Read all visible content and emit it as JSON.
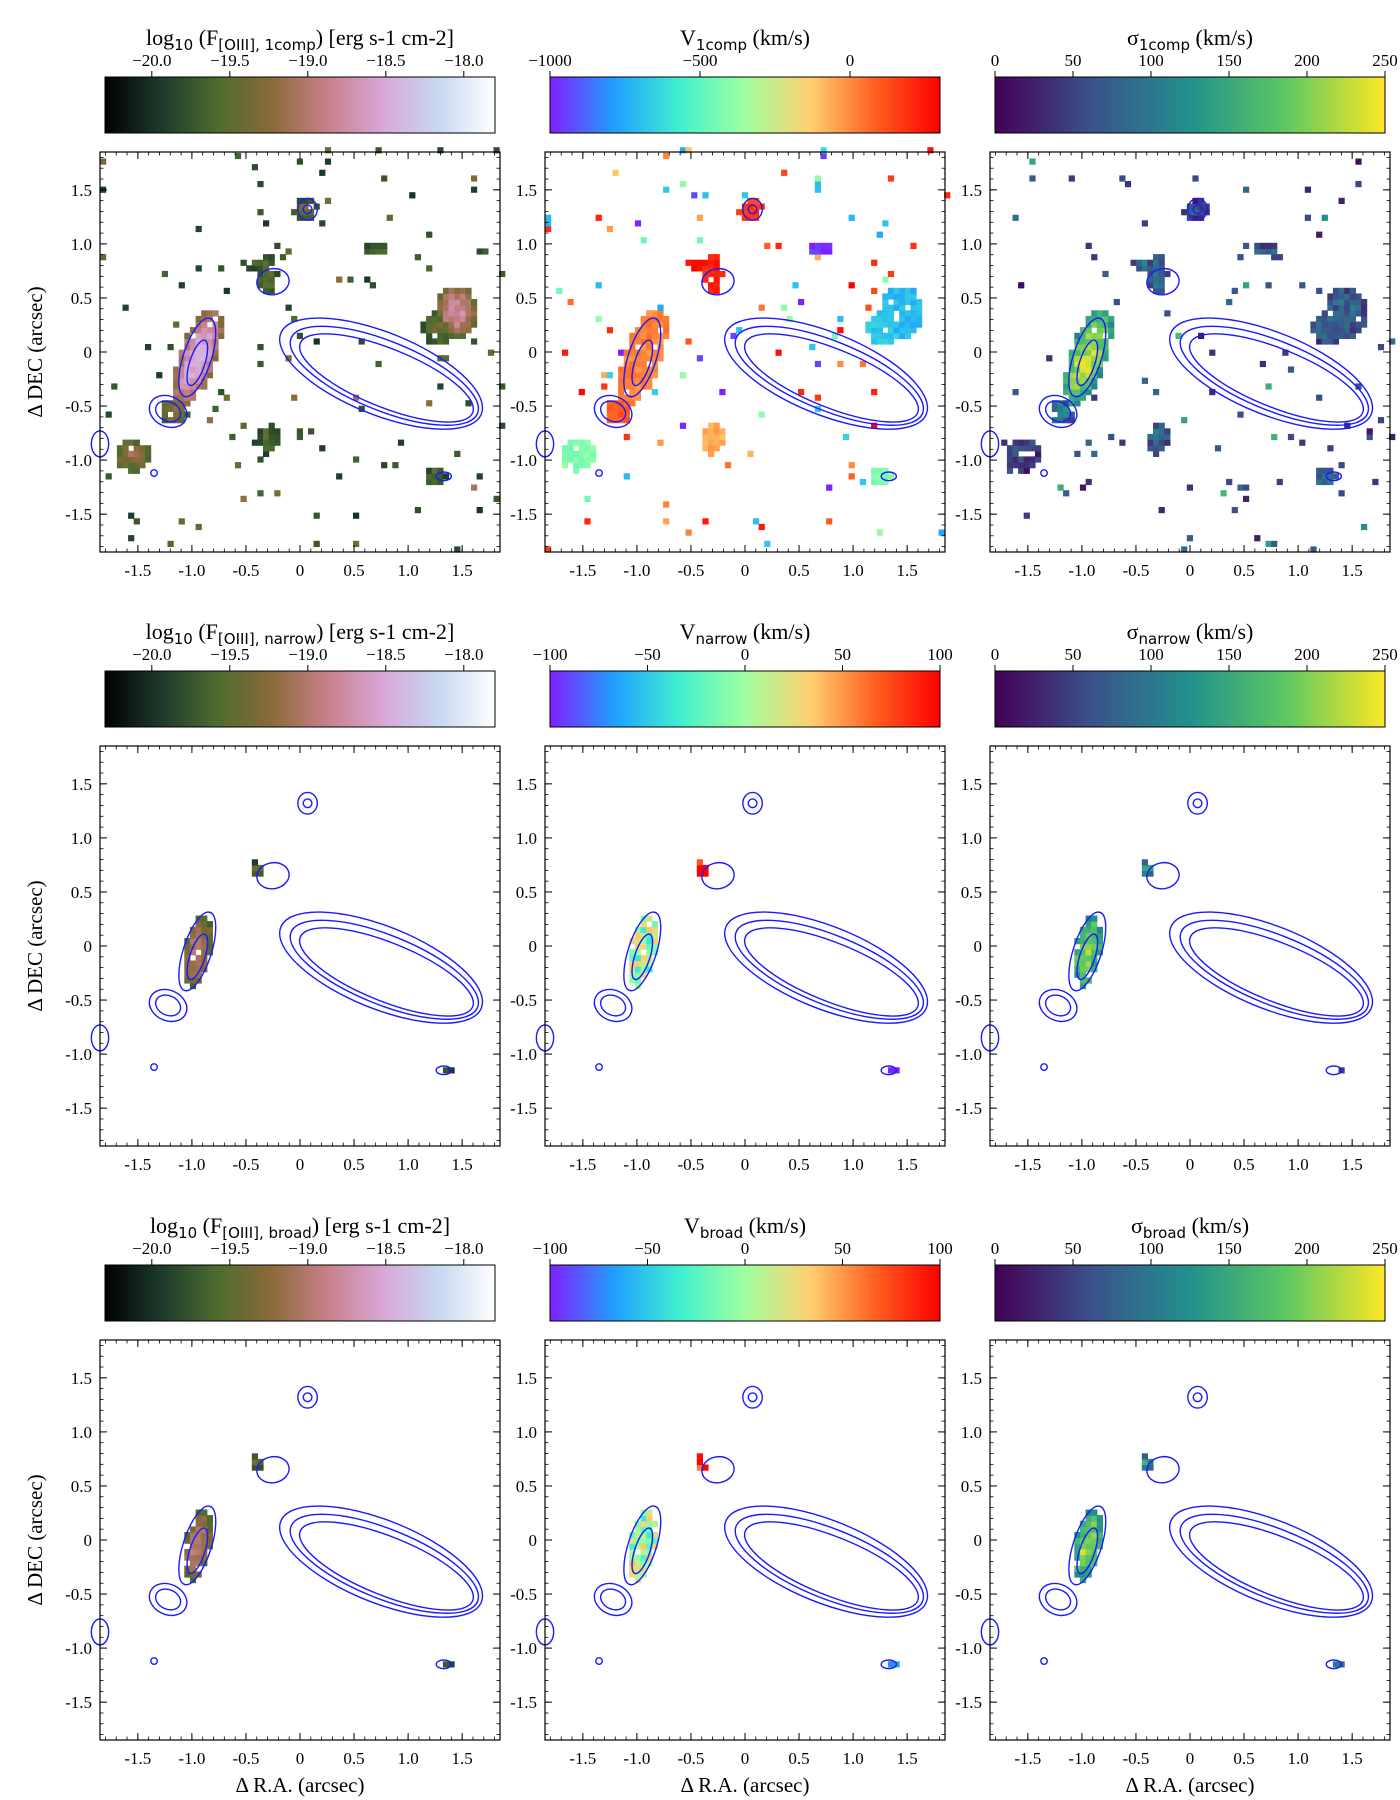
{
  "figure": {
    "x_axis_label": "Δ R.A. (arcsec)",
    "y_axis_label": "Δ DEC (arcsec)"
  },
  "chart_data": {
    "type": "heatmap",
    "grid": "off",
    "xlim": [
      -1.85,
      1.85
    ],
    "ylim": [
      -1.85,
      1.85
    ],
    "xticks": [
      "-1.5",
      "-1.0",
      "-0.5",
      "0",
      "0.5",
      "1.0",
      "1.5"
    ],
    "xtick_values": [
      -1.5,
      -1.0,
      -0.5,
      0,
      0.5,
      1.0,
      1.5
    ],
    "yticks": [
      "1.5",
      "1.0",
      "0.5",
      "0",
      "-0.5",
      "-1.0",
      "-1.5"
    ],
    "ytick_values": [
      1.5,
      1.0,
      0.5,
      0,
      -0.5,
      -1.0,
      -1.5
    ],
    "colormaps": {
      "flux": [
        "#000000",
        "#1c3a2c",
        "#4c6b2e",
        "#8c6a3a",
        "#c8808a",
        "#d8a8d8",
        "#c8d8f0",
        "#ffffff"
      ],
      "velocity": [
        "#8020ff",
        "#20a0ff",
        "#40f0d0",
        "#a0ffa0",
        "#ffd070",
        "#ff6020",
        "#ff0000"
      ],
      "dispersion": [
        "#440154",
        "#3b528b",
        "#21918c",
        "#5ec962",
        "#fde725"
      ]
    },
    "contour_color": "#1a1aff",
    "rows": [
      {
        "name": "1comp",
        "panels": [
          {
            "colorbar": {
              "label_pre": "log",
              "label_pre_sub": "10",
              "label_mid": " (F",
              "label_sub": "[OIII], 1comp",
              "label_post": ") [erg s-1 cm-2]",
              "cmap": "flux",
              "range": [
                -20.3,
                -17.8
              ],
              "ticks": [
                "−20.0",
                "−19.5",
                "−19.0",
                "−18.5",
                "−18.0"
              ],
              "tick_values": [
                -20.0,
                -19.5,
                -19.0,
                -18.5,
                -18.0
              ]
            },
            "show_xlabel": false,
            "show_ylabel": true
          },
          {
            "colorbar": {
              "label_pre": "V",
              "label_pre_sub": "",
              "label_mid": "",
              "label_sub": "1comp",
              "label_post": " (km/s)",
              "cmap": "velocity",
              "range": [
                -1000,
                300
              ],
              "ticks": [
                "−1000",
                "−500",
                "0"
              ],
              "tick_values": [
                -1000,
                -500,
                0
              ]
            },
            "show_xlabel": false,
            "show_ylabel": false
          },
          {
            "colorbar": {
              "label_pre": "σ",
              "label_pre_sub": "",
              "label_mid": "",
              "label_sub": "1comp",
              "label_post": " (km/s)",
              "cmap": "dispersion",
              "range": [
                0,
                250
              ],
              "ticks": [
                "0",
                "50",
                "100",
                "150",
                "200",
                "250"
              ],
              "tick_values": [
                0,
                50,
                100,
                150,
                200,
                250
              ]
            },
            "show_xlabel": false,
            "show_ylabel": false
          }
        ]
      },
      {
        "name": "narrow",
        "panels": [
          {
            "colorbar": {
              "label_pre": "log",
              "label_pre_sub": "10",
              "label_mid": " (F",
              "label_sub": "[OIII], narrow",
              "label_post": ") [erg s-1 cm-2]",
              "cmap": "flux",
              "range": [
                -20.3,
                -17.8
              ],
              "ticks": [
                "−20.0",
                "−19.5",
                "−19.0",
                "−18.5",
                "−18.0"
              ],
              "tick_values": [
                -20.0,
                -19.5,
                -19.0,
                -18.5,
                -18.0
              ]
            },
            "show_xlabel": false,
            "show_ylabel": true
          },
          {
            "colorbar": {
              "label_pre": "V",
              "label_pre_sub": "",
              "label_mid": "",
              "label_sub": "narrow",
              "label_post": " (km/s)",
              "cmap": "velocity",
              "range": [
                -100,
                100
              ],
              "ticks": [
                "−100",
                "−50",
                "0",
                "50",
                "100"
              ],
              "tick_values": [
                -100,
                -50,
                0,
                50,
                100
              ]
            },
            "show_xlabel": false,
            "show_ylabel": false
          },
          {
            "colorbar": {
              "label_pre": "σ",
              "label_pre_sub": "",
              "label_mid": "",
              "label_sub": "narrow",
              "label_post": " (km/s)",
              "cmap": "dispersion",
              "range": [
                0,
                250
              ],
              "ticks": [
                "0",
                "50",
                "100",
                "150",
                "200",
                "250"
              ],
              "tick_values": [
                0,
                50,
                100,
                150,
                200,
                250
              ]
            },
            "show_xlabel": false,
            "show_ylabel": false
          }
        ]
      },
      {
        "name": "broad",
        "panels": [
          {
            "colorbar": {
              "label_pre": "log",
              "label_pre_sub": "10",
              "label_mid": " (F",
              "label_sub": "[OIII], broad",
              "label_post": ") [erg s-1 cm-2]",
              "cmap": "flux",
              "range": [
                -20.3,
                -17.8
              ],
              "ticks": [
                "−20.0",
                "−19.5",
                "−19.0",
                "−18.5",
                "−18.0"
              ],
              "tick_values": [
                -20.0,
                -19.5,
                -19.0,
                -18.5,
                -18.0
              ]
            },
            "show_xlabel": true,
            "show_ylabel": true
          },
          {
            "colorbar": {
              "label_pre": "V",
              "label_pre_sub": "",
              "label_mid": "",
              "label_sub": "broad",
              "label_post": " (km/s)",
              "cmap": "velocity",
              "range": [
                -100,
                100
              ],
              "ticks": [
                "−100",
                "−50",
                "0",
                "50",
                "100"
              ],
              "tick_values": [
                -100,
                -50,
                0,
                50,
                100
              ]
            },
            "show_xlabel": true,
            "show_ylabel": false
          },
          {
            "colorbar": {
              "label_pre": "σ",
              "label_pre_sub": "",
              "label_mid": "",
              "label_sub": "broad",
              "label_post": " (km/s)",
              "cmap": "dispersion",
              "range": [
                0,
                250
              ],
              "ticks": [
                "0",
                "50",
                "100",
                "150",
                "200",
                "250"
              ],
              "tick_values": [
                0,
                50,
                100,
                150,
                200,
                250
              ]
            },
            "show_xlabel": true,
            "show_ylabel": false
          }
        ]
      }
    ]
  }
}
